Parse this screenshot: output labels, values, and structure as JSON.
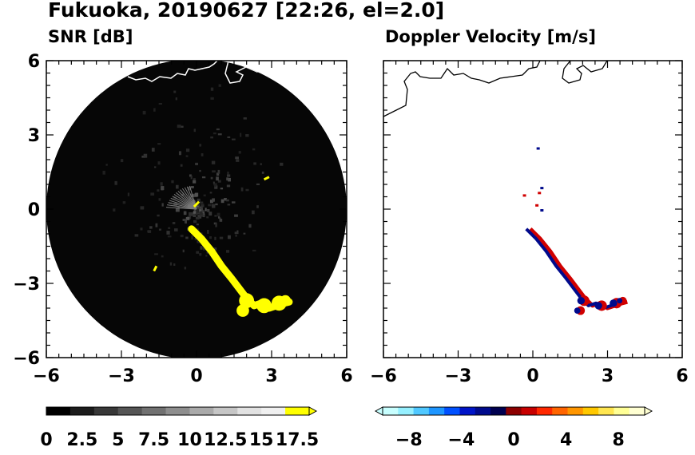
{
  "figure": {
    "title": "Fukuoka, 20190627 [22:26, el=2.0]"
  },
  "chart_data": [
    {
      "type": "heatmap",
      "title": "SNR [dB]",
      "xlim": [
        -6,
        6
      ],
      "ylim": [
        -6,
        6
      ],
      "xticks": [
        "−6",
        "−3",
        "0",
        "3",
        "6"
      ],
      "yticks": [
        "6",
        "3",
        "0",
        "−3",
        "−6"
      ],
      "radar_range": 6,
      "colorbar": {
        "min": 0,
        "max": 17.5,
        "labels": [
          "0",
          "2.5",
          "5",
          "7.5",
          "10",
          "12.5",
          "15",
          "17.5"
        ],
        "colors": [
          "#000000",
          "#1c1c1c",
          "#383838",
          "#555555",
          "#717171",
          "#8e8e8e",
          "#aaaaaa",
          "#c6c6c6",
          "#e2e2e2",
          "#f0f0f0",
          "#ffff00"
        ],
        "extend": "max"
      },
      "echo_color": "#ffff00",
      "coastline_color": "#ffffff"
    },
    {
      "type": "heatmap",
      "title": "Doppler Velocity [m/s]",
      "xlim": [
        -6,
        6
      ],
      "ylim": [
        -6,
        6
      ],
      "xticks": [
        "−6",
        "−3",
        "0",
        "3",
        "6"
      ],
      "yticks": [
        "6",
        "3",
        "0",
        "−3",
        "−6"
      ],
      "colorbar": {
        "min": -10,
        "max": 10,
        "labels": [
          "−8",
          "−4",
          "0",
          "4",
          "8"
        ],
        "colors": [
          "#c8ffff",
          "#96f0ff",
          "#50c8ff",
          "#1e96ff",
          "#0050ff",
          "#0014c8",
          "#000a8c",
          "#000050",
          "#8c0000",
          "#c80000",
          "#ff2800",
          "#ff6400",
          "#ff9600",
          "#ffc800",
          "#ffe650",
          "#ffff96",
          "#ffffd2"
        ],
        "extend": "both"
      },
      "echo_colors": {
        "approaching": "#000a8c",
        "receding": "#d00000"
      },
      "coastline_color": "#000000"
    }
  ]
}
